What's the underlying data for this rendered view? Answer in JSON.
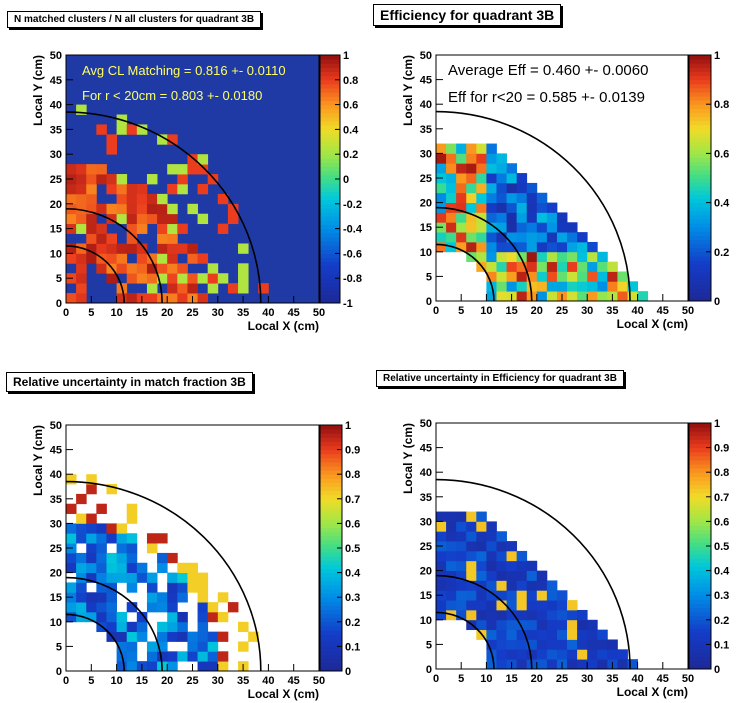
{
  "chart_data": [
    {
      "type": "heatmap",
      "title": "N matched clusters / N all clusters for quadrant 3B",
      "xlabel": "Local X (cm)",
      "ylabel": "Local Y (cm)",
      "xlim": [
        0,
        50
      ],
      "ylim": [
        0,
        50
      ],
      "x_ticks": [
        "0",
        "5",
        "10",
        "15",
        "20",
        "25",
        "30",
        "35",
        "40",
        "45",
        "50"
      ],
      "y_ticks": [
        "0",
        "5",
        "10",
        "15",
        "20",
        "25",
        "30",
        "35",
        "40",
        "45",
        "50"
      ],
      "z_range": [
        -1,
        1
      ],
      "z_ticks": [
        "-1",
        "-0.8",
        "-0.6",
        "-0.4",
        "-0.2",
        "0",
        "0.2",
        "0.4",
        "0.6",
        "0.8",
        "1"
      ],
      "background_color": "#1f3aa4",
      "annotations": [
        "Avg CL Matching = 0.816 +- 0.0110",
        "For r < 20cm = 0.803 +- 0.0180"
      ],
      "annotation_color": "#ffff66"
    },
    {
      "type": "heatmap",
      "title": "Efficiency for quadrant 3B",
      "xlabel": "Local X (cm)",
      "ylabel": "Local Y (cm)",
      "xlim": [
        0,
        50
      ],
      "ylim": [
        0,
        50
      ],
      "x_ticks": [
        "0",
        "5",
        "10",
        "15",
        "20",
        "25",
        "30",
        "35",
        "40",
        "45",
        "50"
      ],
      "y_ticks": [
        "0",
        "5",
        "10",
        "15",
        "20",
        "25",
        "30",
        "35",
        "40",
        "45",
        "50"
      ],
      "z_range": [
        0,
        1
      ],
      "z_ticks": [
        "0",
        "0.2",
        "0.4",
        "0.6",
        "0.8",
        "1"
      ],
      "background_color": "#ffffff",
      "annotations": [
        "Average Eff = 0.460 +- 0.0060",
        "Eff for r<20 = 0.585 +- 0.0139"
      ],
      "annotation_color": "#000000"
    },
    {
      "type": "heatmap",
      "title": "Relative uncertainty in match fraction 3B",
      "xlabel": "Local X (cm)",
      "ylabel": "Local Y (cm)",
      "xlim": [
        0,
        50
      ],
      "ylim": [
        0,
        50
      ],
      "x_ticks": [
        "0",
        "5",
        "10",
        "15",
        "20",
        "25",
        "30",
        "35",
        "40",
        "45",
        "50"
      ],
      "y_ticks": [
        "0",
        "5",
        "10",
        "15",
        "20",
        "25",
        "30",
        "35",
        "40",
        "45",
        "50"
      ],
      "z_range": [
        0,
        1
      ],
      "z_ticks": [
        "0",
        "0.1",
        "0.2",
        "0.3",
        "0.4",
        "0.5",
        "0.6",
        "0.7",
        "0.8",
        "0.9",
        "1"
      ],
      "background_color": "#ffffff",
      "annotations": []
    },
    {
      "type": "heatmap",
      "title": "Relative uncertainty in Efficiency for quadrant 3B",
      "xlabel": "Local X (cm)",
      "ylabel": "Local Y (cm)",
      "xlim": [
        0,
        50
      ],
      "ylim": [
        0,
        50
      ],
      "x_ticks": [
        "0",
        "5",
        "10",
        "15",
        "20",
        "25",
        "30",
        "35",
        "40",
        "45",
        "50"
      ],
      "y_ticks": [
        "0",
        "5",
        "10",
        "15",
        "20",
        "25",
        "30",
        "35",
        "40",
        "45",
        "50"
      ],
      "z_range": [
        0,
        1
      ],
      "z_ticks": [
        "0",
        "0.1",
        "0.2",
        "0.3",
        "0.4",
        "0.5",
        "0.6",
        "0.7",
        "0.8",
        "0.9",
        "1"
      ],
      "background_color": "#ffffff",
      "annotations": []
    }
  ]
}
